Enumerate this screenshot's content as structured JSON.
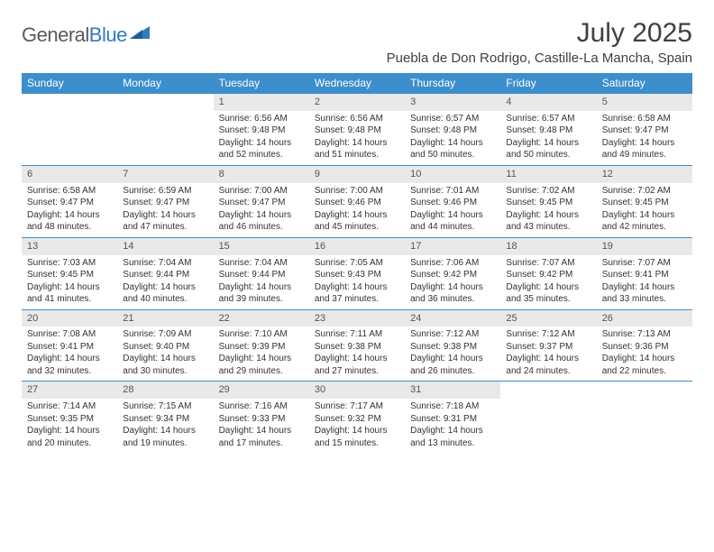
{
  "brand": {
    "name_part1": "General",
    "name_part2": "Blue"
  },
  "title": {
    "month": "July 2025",
    "location": "Puebla de Don Rodrigo, Castille-La Mancha, Spain"
  },
  "colors": {
    "header_bg": "#3c8ecc",
    "header_text": "#ffffff",
    "daynum_bg": "#e9e9e9",
    "daynum_text": "#555555",
    "body_text": "#333333",
    "rule": "#3c8ecc",
    "brand_gray": "#5a5a5a",
    "brand_blue": "#2f7bbf",
    "title_color": "#404040"
  },
  "weekdays": [
    "Sunday",
    "Monday",
    "Tuesday",
    "Wednesday",
    "Thursday",
    "Friday",
    "Saturday"
  ],
  "weeks": [
    [
      {
        "n": "",
        "sr": "",
        "ss": "",
        "d1": "",
        "d2": ""
      },
      {
        "n": "",
        "sr": "",
        "ss": "",
        "d1": "",
        "d2": ""
      },
      {
        "n": "1",
        "sr": "Sunrise: 6:56 AM",
        "ss": "Sunset: 9:48 PM",
        "d1": "Daylight: 14 hours",
        "d2": "and 52 minutes."
      },
      {
        "n": "2",
        "sr": "Sunrise: 6:56 AM",
        "ss": "Sunset: 9:48 PM",
        "d1": "Daylight: 14 hours",
        "d2": "and 51 minutes."
      },
      {
        "n": "3",
        "sr": "Sunrise: 6:57 AM",
        "ss": "Sunset: 9:48 PM",
        "d1": "Daylight: 14 hours",
        "d2": "and 50 minutes."
      },
      {
        "n": "4",
        "sr": "Sunrise: 6:57 AM",
        "ss": "Sunset: 9:48 PM",
        "d1": "Daylight: 14 hours",
        "d2": "and 50 minutes."
      },
      {
        "n": "5",
        "sr": "Sunrise: 6:58 AM",
        "ss": "Sunset: 9:47 PM",
        "d1": "Daylight: 14 hours",
        "d2": "and 49 minutes."
      }
    ],
    [
      {
        "n": "6",
        "sr": "Sunrise: 6:58 AM",
        "ss": "Sunset: 9:47 PM",
        "d1": "Daylight: 14 hours",
        "d2": "and 48 minutes."
      },
      {
        "n": "7",
        "sr": "Sunrise: 6:59 AM",
        "ss": "Sunset: 9:47 PM",
        "d1": "Daylight: 14 hours",
        "d2": "and 47 minutes."
      },
      {
        "n": "8",
        "sr": "Sunrise: 7:00 AM",
        "ss": "Sunset: 9:47 PM",
        "d1": "Daylight: 14 hours",
        "d2": "and 46 minutes."
      },
      {
        "n": "9",
        "sr": "Sunrise: 7:00 AM",
        "ss": "Sunset: 9:46 PM",
        "d1": "Daylight: 14 hours",
        "d2": "and 45 minutes."
      },
      {
        "n": "10",
        "sr": "Sunrise: 7:01 AM",
        "ss": "Sunset: 9:46 PM",
        "d1": "Daylight: 14 hours",
        "d2": "and 44 minutes."
      },
      {
        "n": "11",
        "sr": "Sunrise: 7:02 AM",
        "ss": "Sunset: 9:45 PM",
        "d1": "Daylight: 14 hours",
        "d2": "and 43 minutes."
      },
      {
        "n": "12",
        "sr": "Sunrise: 7:02 AM",
        "ss": "Sunset: 9:45 PM",
        "d1": "Daylight: 14 hours",
        "d2": "and 42 minutes."
      }
    ],
    [
      {
        "n": "13",
        "sr": "Sunrise: 7:03 AM",
        "ss": "Sunset: 9:45 PM",
        "d1": "Daylight: 14 hours",
        "d2": "and 41 minutes."
      },
      {
        "n": "14",
        "sr": "Sunrise: 7:04 AM",
        "ss": "Sunset: 9:44 PM",
        "d1": "Daylight: 14 hours",
        "d2": "and 40 minutes."
      },
      {
        "n": "15",
        "sr": "Sunrise: 7:04 AM",
        "ss": "Sunset: 9:44 PM",
        "d1": "Daylight: 14 hours",
        "d2": "and 39 minutes."
      },
      {
        "n": "16",
        "sr": "Sunrise: 7:05 AM",
        "ss": "Sunset: 9:43 PM",
        "d1": "Daylight: 14 hours",
        "d2": "and 37 minutes."
      },
      {
        "n": "17",
        "sr": "Sunrise: 7:06 AM",
        "ss": "Sunset: 9:42 PM",
        "d1": "Daylight: 14 hours",
        "d2": "and 36 minutes."
      },
      {
        "n": "18",
        "sr": "Sunrise: 7:07 AM",
        "ss": "Sunset: 9:42 PM",
        "d1": "Daylight: 14 hours",
        "d2": "and 35 minutes."
      },
      {
        "n": "19",
        "sr": "Sunrise: 7:07 AM",
        "ss": "Sunset: 9:41 PM",
        "d1": "Daylight: 14 hours",
        "d2": "and 33 minutes."
      }
    ],
    [
      {
        "n": "20",
        "sr": "Sunrise: 7:08 AM",
        "ss": "Sunset: 9:41 PM",
        "d1": "Daylight: 14 hours",
        "d2": "and 32 minutes."
      },
      {
        "n": "21",
        "sr": "Sunrise: 7:09 AM",
        "ss": "Sunset: 9:40 PM",
        "d1": "Daylight: 14 hours",
        "d2": "and 30 minutes."
      },
      {
        "n": "22",
        "sr": "Sunrise: 7:10 AM",
        "ss": "Sunset: 9:39 PM",
        "d1": "Daylight: 14 hours",
        "d2": "and 29 minutes."
      },
      {
        "n": "23",
        "sr": "Sunrise: 7:11 AM",
        "ss": "Sunset: 9:38 PM",
        "d1": "Daylight: 14 hours",
        "d2": "and 27 minutes."
      },
      {
        "n": "24",
        "sr": "Sunrise: 7:12 AM",
        "ss": "Sunset: 9:38 PM",
        "d1": "Daylight: 14 hours",
        "d2": "and 26 minutes."
      },
      {
        "n": "25",
        "sr": "Sunrise: 7:12 AM",
        "ss": "Sunset: 9:37 PM",
        "d1": "Daylight: 14 hours",
        "d2": "and 24 minutes."
      },
      {
        "n": "26",
        "sr": "Sunrise: 7:13 AM",
        "ss": "Sunset: 9:36 PM",
        "d1": "Daylight: 14 hours",
        "d2": "and 22 minutes."
      }
    ],
    [
      {
        "n": "27",
        "sr": "Sunrise: 7:14 AM",
        "ss": "Sunset: 9:35 PM",
        "d1": "Daylight: 14 hours",
        "d2": "and 20 minutes."
      },
      {
        "n": "28",
        "sr": "Sunrise: 7:15 AM",
        "ss": "Sunset: 9:34 PM",
        "d1": "Daylight: 14 hours",
        "d2": "and 19 minutes."
      },
      {
        "n": "29",
        "sr": "Sunrise: 7:16 AM",
        "ss": "Sunset: 9:33 PM",
        "d1": "Daylight: 14 hours",
        "d2": "and 17 minutes."
      },
      {
        "n": "30",
        "sr": "Sunrise: 7:17 AM",
        "ss": "Sunset: 9:32 PM",
        "d1": "Daylight: 14 hours",
        "d2": "and 15 minutes."
      },
      {
        "n": "31",
        "sr": "Sunrise: 7:18 AM",
        "ss": "Sunset: 9:31 PM",
        "d1": "Daylight: 14 hours",
        "d2": "and 13 minutes."
      },
      {
        "n": "",
        "sr": "",
        "ss": "",
        "d1": "",
        "d2": ""
      },
      {
        "n": "",
        "sr": "",
        "ss": "",
        "d1": "",
        "d2": ""
      }
    ]
  ]
}
